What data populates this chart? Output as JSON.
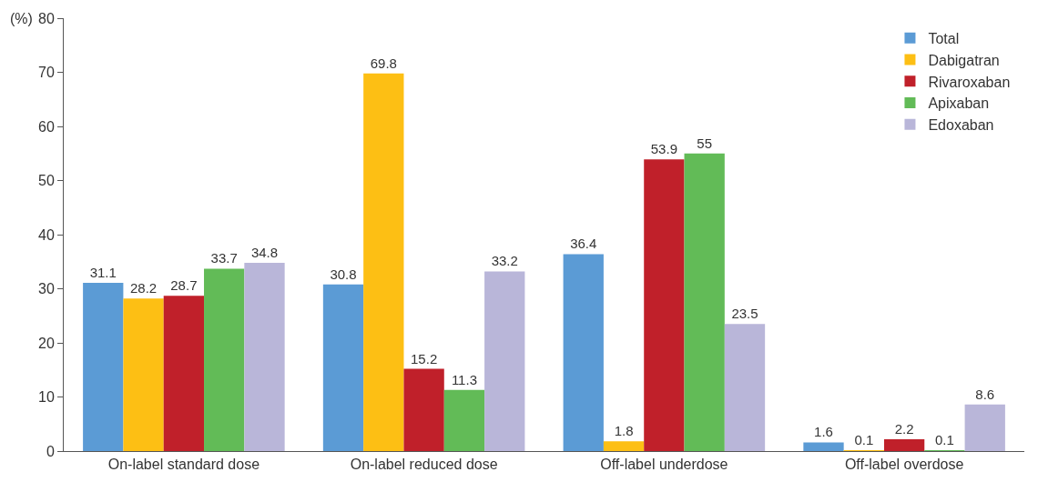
{
  "chart_data": {
    "type": "bar",
    "ylabel": "(%)",
    "categories": [
      "On-label standard dose",
      "On-label reduced dose",
      "Off-label underdose",
      "Off-label overdose"
    ],
    "series": [
      {
        "name": "Total",
        "color": "#5b9bd5",
        "values": [
          31.1,
          30.8,
          36.4,
          1.6
        ]
      },
      {
        "name": "Dabigatran",
        "color": "#fdbf14",
        "values": [
          28.2,
          69.8,
          1.8,
          0.1
        ]
      },
      {
        "name": "Rivaroxaban",
        "color": "#c0202a",
        "values": [
          28.7,
          15.2,
          53.9,
          2.2
        ]
      },
      {
        "name": "Apixaban",
        "color": "#62bb57",
        "values": [
          33.7,
          11.3,
          55,
          0.1
        ]
      },
      {
        "name": "Edoxaban",
        "color": "#b9b6d9",
        "values": [
          34.8,
          33.2,
          23.5,
          8.6
        ]
      }
    ],
    "ylim": [
      0,
      80
    ],
    "yticks": [
      0,
      10,
      20,
      30,
      40,
      50,
      60,
      70,
      80
    ],
    "data_labels": true,
    "legend": "top right"
  }
}
